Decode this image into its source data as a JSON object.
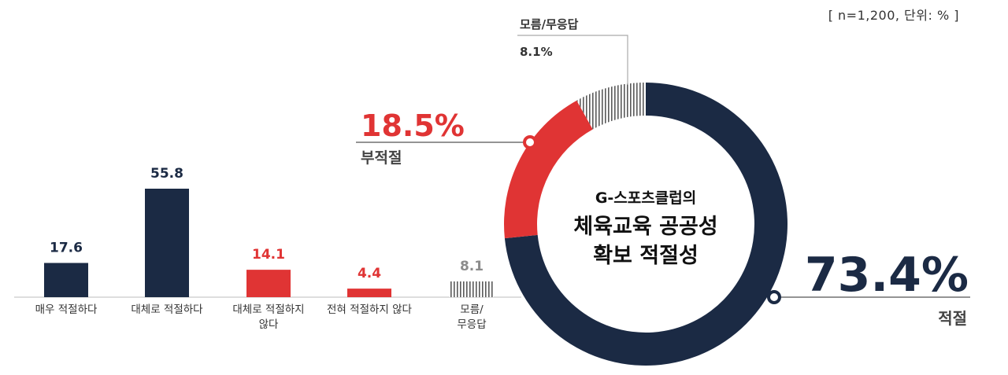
{
  "sample_note": "[ n=1,200, 단위: % ]",
  "colors": {
    "navy": "#1b2a44",
    "red": "#e03434",
    "gray": "#8c8c8c",
    "hatch": "#5a5a5a",
    "axis": "#bdbdbd"
  },
  "chart_data": [
    {
      "type": "bar",
      "categories": [
        "매우 적절하다",
        "대체로 적절하다",
        "대체로 적절하지 않다",
        "전혀 적절하지 않다",
        "모름/ 무응답"
      ],
      "category_lines": [
        [
          "매우 적절하다"
        ],
        [
          "대체로 적절하다"
        ],
        [
          "대체로 적절하지",
          "않다"
        ],
        [
          "전혀 적절하지 않다"
        ],
        [
          "모름/",
          "무응답"
        ]
      ],
      "values": [
        17.6,
        55.8,
        14.1,
        4.4,
        8.1
      ],
      "value_labels": [
        "17.6",
        "55.8",
        "14.1",
        "4.4",
        "8.1"
      ],
      "bar_styles": [
        "navy",
        "navy",
        "red",
        "red",
        "hatch"
      ],
      "ylim": [
        0,
        60
      ]
    },
    {
      "type": "pie",
      "donut": true,
      "center_text": [
        "G-스포츠클럽의",
        "체육교육 공공성",
        "확보 적절성"
      ],
      "slices": [
        {
          "label": "적절",
          "value": 73.4,
          "value_label": "73.4%",
          "style": "navy"
        },
        {
          "label": "부적절",
          "value": 18.5,
          "value_label": "18.5%",
          "style": "red"
        },
        {
          "label": "모름/무응답",
          "value": 8.1,
          "value_label": "8.1%",
          "style": "hatch"
        }
      ]
    }
  ]
}
